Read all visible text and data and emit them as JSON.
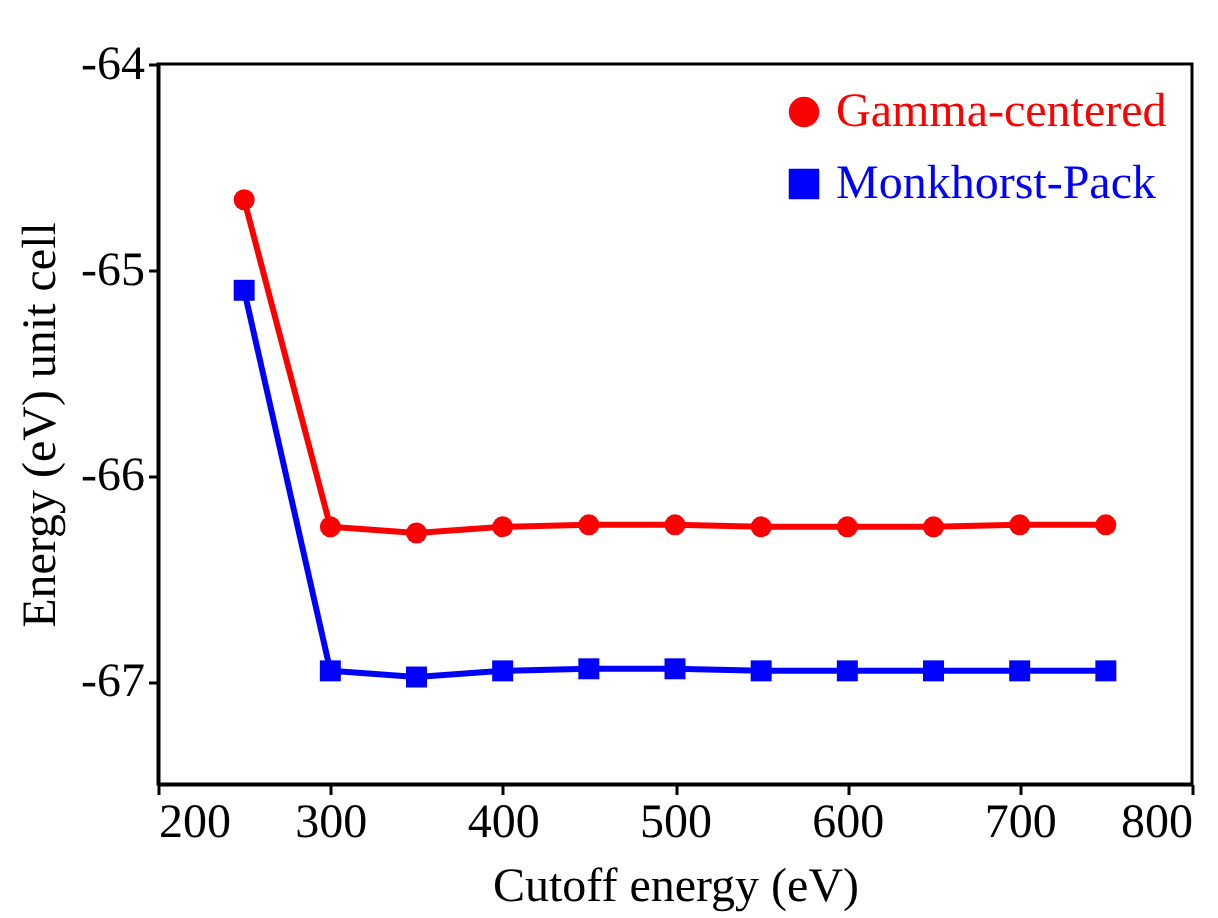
{
  "chart_data": {
    "type": "line",
    "xlabel": "Cutoff energy (eV)",
    "ylabel": "Energy (eV) unit cell",
    "x": [
      250,
      300,
      350,
      400,
      450,
      500,
      550,
      600,
      650,
      700,
      750
    ],
    "series": [
      {
        "name": "Gamma-centered",
        "color": "#ff0000",
        "marker": "circle",
        "values": [
          -64.66,
          -66.25,
          -66.28,
          -66.25,
          -66.24,
          -66.24,
          -66.25,
          -66.25,
          -66.25,
          -66.24,
          -66.24
        ]
      },
      {
        "name": "Monkhorst-Pack",
        "color": "#0000ff",
        "marker": "square",
        "values": [
          -65.1,
          -66.95,
          -66.98,
          -66.95,
          -66.94,
          -66.94,
          -66.95,
          -66.95,
          -66.95,
          -66.95,
          -66.95
        ]
      }
    ],
    "xlim": [
      200,
      800
    ],
    "xticks": [
      200,
      300,
      400,
      500,
      600,
      700,
      800
    ],
    "ylim": [
      -67.5,
      -64
    ],
    "yticks": [
      -67,
      -66,
      -65,
      -64
    ],
    "legend": "top right",
    "grid": false,
    "line_style": "solid"
  }
}
